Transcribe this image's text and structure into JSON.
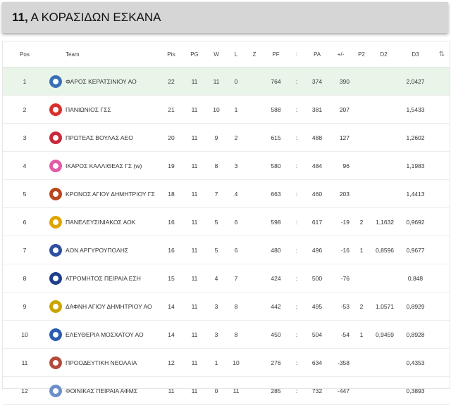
{
  "header": {
    "number": "11,",
    "title": "Α ΚΟΡΑΣΙΔΩΝ ΕΣΚΑΝΑ"
  },
  "columns": {
    "pos": "Pos",
    "team": "Team",
    "pts": "Pts",
    "pg": "PG",
    "w": "W",
    "l": "L",
    "z": "Z",
    "pf": "PF",
    "sep": ":",
    "pa": "PA",
    "diff": "+/-",
    "p2": "P2",
    "d2": "D2",
    "d3": "D3",
    "sort": "⇅"
  },
  "rows": [
    {
      "pos": "1",
      "team": "ΦΑΡΟΣ ΚΕΡΑΤΣΙΝΙΟΥ ΑΟ",
      "pts": "22",
      "pg": "11",
      "w": "11",
      "l": "0",
      "z": "",
      "pf": "764",
      "sep": ":",
      "pa": "374",
      "diff": "390",
      "p2": "",
      "d2": "",
      "d3": "2,0427",
      "logo_color": "#3a6fb5"
    },
    {
      "pos": "2",
      "team": "ΠΑΝΙΩΝΙΟΣ ΓΣΣ",
      "pts": "21",
      "pg": "11",
      "w": "10",
      "l": "1",
      "z": "",
      "pf": "588",
      "sep": ":",
      "pa": "381",
      "diff": "207",
      "p2": "",
      "d2": "",
      "d3": "1,5433",
      "logo_color": "#d9302b"
    },
    {
      "pos": "3",
      "team": "ΠΡΩΤΕΑΣ ΒΟΥΛΑΣ ΑΕΟ",
      "pts": "20",
      "pg": "11",
      "w": "9",
      "l": "2",
      "z": "",
      "pf": "615",
      "sep": ":",
      "pa": "488",
      "diff": "127",
      "p2": "",
      "d2": "",
      "d3": "1,2602",
      "logo_color": "#c8283c"
    },
    {
      "pos": "4",
      "team": "ΙΚΑΡΟΣ ΚΑΛΛΙΘΕΑΣ ΓΣ (w)",
      "pts": "19",
      "pg": "11",
      "w": "8",
      "l": "3",
      "z": "",
      "pf": "580",
      "sep": ":",
      "pa": "484",
      "diff": "96",
      "p2": "",
      "d2": "",
      "d3": "1,1983",
      "logo_color": "#e25aa8"
    },
    {
      "pos": "5",
      "team": "ΚΡΟΝΟΣ ΑΓΙΟΥ ΔΗΜΗΤΡΙΟΥ ΓΣ",
      "pts": "18",
      "pg": "11",
      "w": "7",
      "l": "4",
      "z": "",
      "pf": "663",
      "sep": ":",
      "pa": "460",
      "diff": "203",
      "p2": "",
      "d2": "",
      "d3": "1,4413",
      "logo_color": "#b8461f"
    },
    {
      "pos": "6",
      "team": "ΠΑΝΕΛΕΥΣΙΝΙΑΚΟΣ ΑΟΚ",
      "pts": "16",
      "pg": "11",
      "w": "5",
      "l": "6",
      "z": "",
      "pf": "598",
      "sep": ":",
      "pa": "617",
      "diff": "-19",
      "p2": "2",
      "d2": "1,1632",
      "d3": "0,9692",
      "logo_color": "#e0a400"
    },
    {
      "pos": "7",
      "team": "ΑΟΝ ΑΡΓΥΡΟΥΠΟΛΗΣ",
      "pts": "16",
      "pg": "11",
      "w": "5",
      "l": "6",
      "z": "",
      "pf": "480",
      "sep": ":",
      "pa": "496",
      "diff": "-16",
      "p2": "1",
      "d2": "0,8596",
      "d3": "0,9677",
      "logo_color": "#2f4fa0"
    },
    {
      "pos": "8",
      "team": "ΑΤΡΟΜΗΤΟΣ ΠΕΙΡΑΙΑ ΕΣΗ",
      "pts": "15",
      "pg": "11",
      "w": "4",
      "l": "7",
      "z": "",
      "pf": "424",
      "sep": ":",
      "pa": "500",
      "diff": "-76",
      "p2": "",
      "d2": "",
      "d3": "0,848",
      "logo_color": "#1f3f8a"
    },
    {
      "pos": "9",
      "team": "ΔΑΦΝΗ ΑΓΙΟΥ ΔΗΜΗΤΡΙΟΥ ΑΟ",
      "pts": "14",
      "pg": "11",
      "w": "3",
      "l": "8",
      "z": "",
      "pf": "442",
      "sep": ":",
      "pa": "495",
      "diff": "-53",
      "p2": "2",
      "d2": "1,0571",
      "d3": "0,8929",
      "logo_color": "#c9a500"
    },
    {
      "pos": "10",
      "team": "ΕΛΕΥΘΕΡΙΑ ΜΟΣΧΑΤΟΥ ΑΟ",
      "pts": "14",
      "pg": "11",
      "w": "3",
      "l": "8",
      "z": "",
      "pf": "450",
      "sep": ":",
      "pa": "504",
      "diff": "-54",
      "p2": "1",
      "d2": "0,9459",
      "d3": "0,8928",
      "logo_color": "#2a5db0"
    },
    {
      "pos": "11",
      "team": "ΠΡΟΟΔΕΥΤΙΚΗ ΝΕΟΛΑΙΑ",
      "pts": "12",
      "pg": "11",
      "w": "1",
      "l": "10",
      "z": "",
      "pf": "276",
      "sep": ":",
      "pa": "634",
      "diff": "-358",
      "p2": "",
      "d2": "",
      "d3": "0,4353",
      "logo_color": "#b34a3a"
    },
    {
      "pos": "12",
      "team": "ΦΟΙΝΙΚΑΣ ΠΕΙΡΑΙΑ ΑΦΜΣ",
      "pts": "11",
      "pg": "11",
      "w": "0",
      "l": "11",
      "z": "",
      "pf": "285",
      "sep": ":",
      "pa": "732",
      "diff": "-447",
      "p2": "",
      "d2": "",
      "d3": "0,3893",
      "logo_color": "#6f8fc9"
    }
  ]
}
